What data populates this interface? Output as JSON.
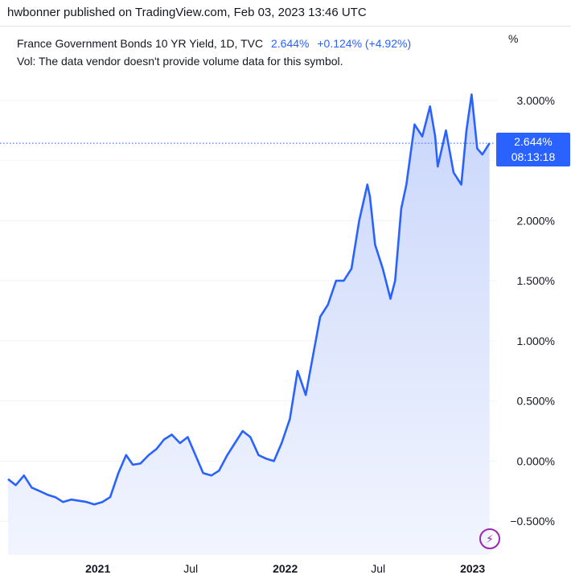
{
  "header": {
    "publisher": "hwbonner published on TradingView.com, Feb 03, 2023 13:46 UTC"
  },
  "legend": {
    "symbol": "France Government Bonds 10 YR Yield, 1D, TVC",
    "last": "2.644%",
    "change": "+0.124% (+4.92%)",
    "volume_note": "Vol: The data vendor doesn't provide volume data for this symbol."
  },
  "price_scale": {
    "unit": "%"
  },
  "price_label": {
    "value": "2.644%",
    "countdown": "08:13:18"
  },
  "colors": {
    "line": "#2962ff",
    "fill_top": "#c9d6fb",
    "fill_bottom": "#f2f5fe",
    "accent_icon": "#9c27b0"
  },
  "icons": {
    "bolt": "lightning-bolt-icon"
  },
  "chart_data": {
    "type": "area",
    "x_axis": {
      "tick_labels": [
        "2021",
        "Jul",
        "2022",
        "Jul",
        "2023"
      ],
      "tick_dates": [
        "2021-01-01",
        "2021-07-01",
        "2022-01-01",
        "2022-07-01",
        "2023-01-01"
      ],
      "bold": [
        true,
        false,
        true,
        false,
        true
      ]
    },
    "y_axis": {
      "ticks": [
        -0.5,
        0,
        0.5,
        1,
        1.5,
        2,
        2.5,
        3
      ],
      "tick_labels": [
        "−0.500%",
        "0.000%",
        "0.500%",
        "1.000%",
        "1.500%",
        "2.000%",
        "2.500%",
        "3.000%"
      ],
      "range": [
        -0.78,
        3.3
      ],
      "position": "right"
    },
    "last_value_line": 2.644,
    "series": [
      {
        "x": [
          "2020-07-10",
          "2020-07-25",
          "2020-08-10",
          "2020-08-25",
          "2020-09-10",
          "2020-09-25",
          "2020-10-10",
          "2020-10-25",
          "2020-11-10",
          "2020-11-25",
          "2020-12-10",
          "2020-12-25",
          "2021-01-10",
          "2021-01-25",
          "2021-02-10",
          "2021-02-25",
          "2021-03-10",
          "2021-03-25",
          "2021-04-10",
          "2021-04-25",
          "2021-05-10",
          "2021-05-25",
          "2021-06-10",
          "2021-06-25",
          "2021-07-10",
          "2021-07-25",
          "2021-08-10",
          "2021-08-25",
          "2021-09-10",
          "2021-09-25",
          "2021-10-10",
          "2021-10-25",
          "2021-11-10",
          "2021-11-25",
          "2021-12-10",
          "2021-12-25",
          "2022-01-10",
          "2022-01-25",
          "2022-02-10",
          "2022-02-25",
          "2022-03-10",
          "2022-03-25",
          "2022-04-10",
          "2022-04-25",
          "2022-05-10",
          "2022-05-25",
          "2022-06-10",
          "2022-06-15",
          "2022-06-25",
          "2022-07-10",
          "2022-07-25",
          "2022-08-03",
          "2022-08-15",
          "2022-08-25",
          "2022-09-10",
          "2022-09-25",
          "2022-10-10",
          "2022-10-20",
          "2022-10-25",
          "2022-11-10",
          "2022-11-25",
          "2022-12-10",
          "2022-12-20",
          "2022-12-30",
          "2023-01-10",
          "2023-01-20",
          "2023-02-03"
        ],
        "values": [
          -0.15,
          -0.2,
          -0.12,
          -0.22,
          -0.25,
          -0.28,
          -0.3,
          -0.34,
          -0.32,
          -0.33,
          -0.34,
          -0.36,
          -0.34,
          -0.3,
          -0.1,
          0.05,
          -0.03,
          -0.02,
          0.05,
          0.1,
          0.18,
          0.22,
          0.15,
          0.2,
          0.05,
          -0.1,
          -0.12,
          -0.08,
          0.05,
          0.15,
          0.25,
          0.2,
          0.05,
          0.02,
          0.0,
          0.15,
          0.35,
          0.75,
          0.55,
          0.9,
          1.2,
          1.3,
          1.5,
          1.5,
          1.6,
          2.0,
          2.3,
          2.2,
          1.8,
          1.6,
          1.35,
          1.5,
          2.1,
          2.3,
          2.8,
          2.7,
          2.95,
          2.7,
          2.45,
          2.75,
          2.4,
          2.3,
          2.75,
          3.05,
          2.6,
          2.55,
          2.644
        ]
      }
    ]
  }
}
